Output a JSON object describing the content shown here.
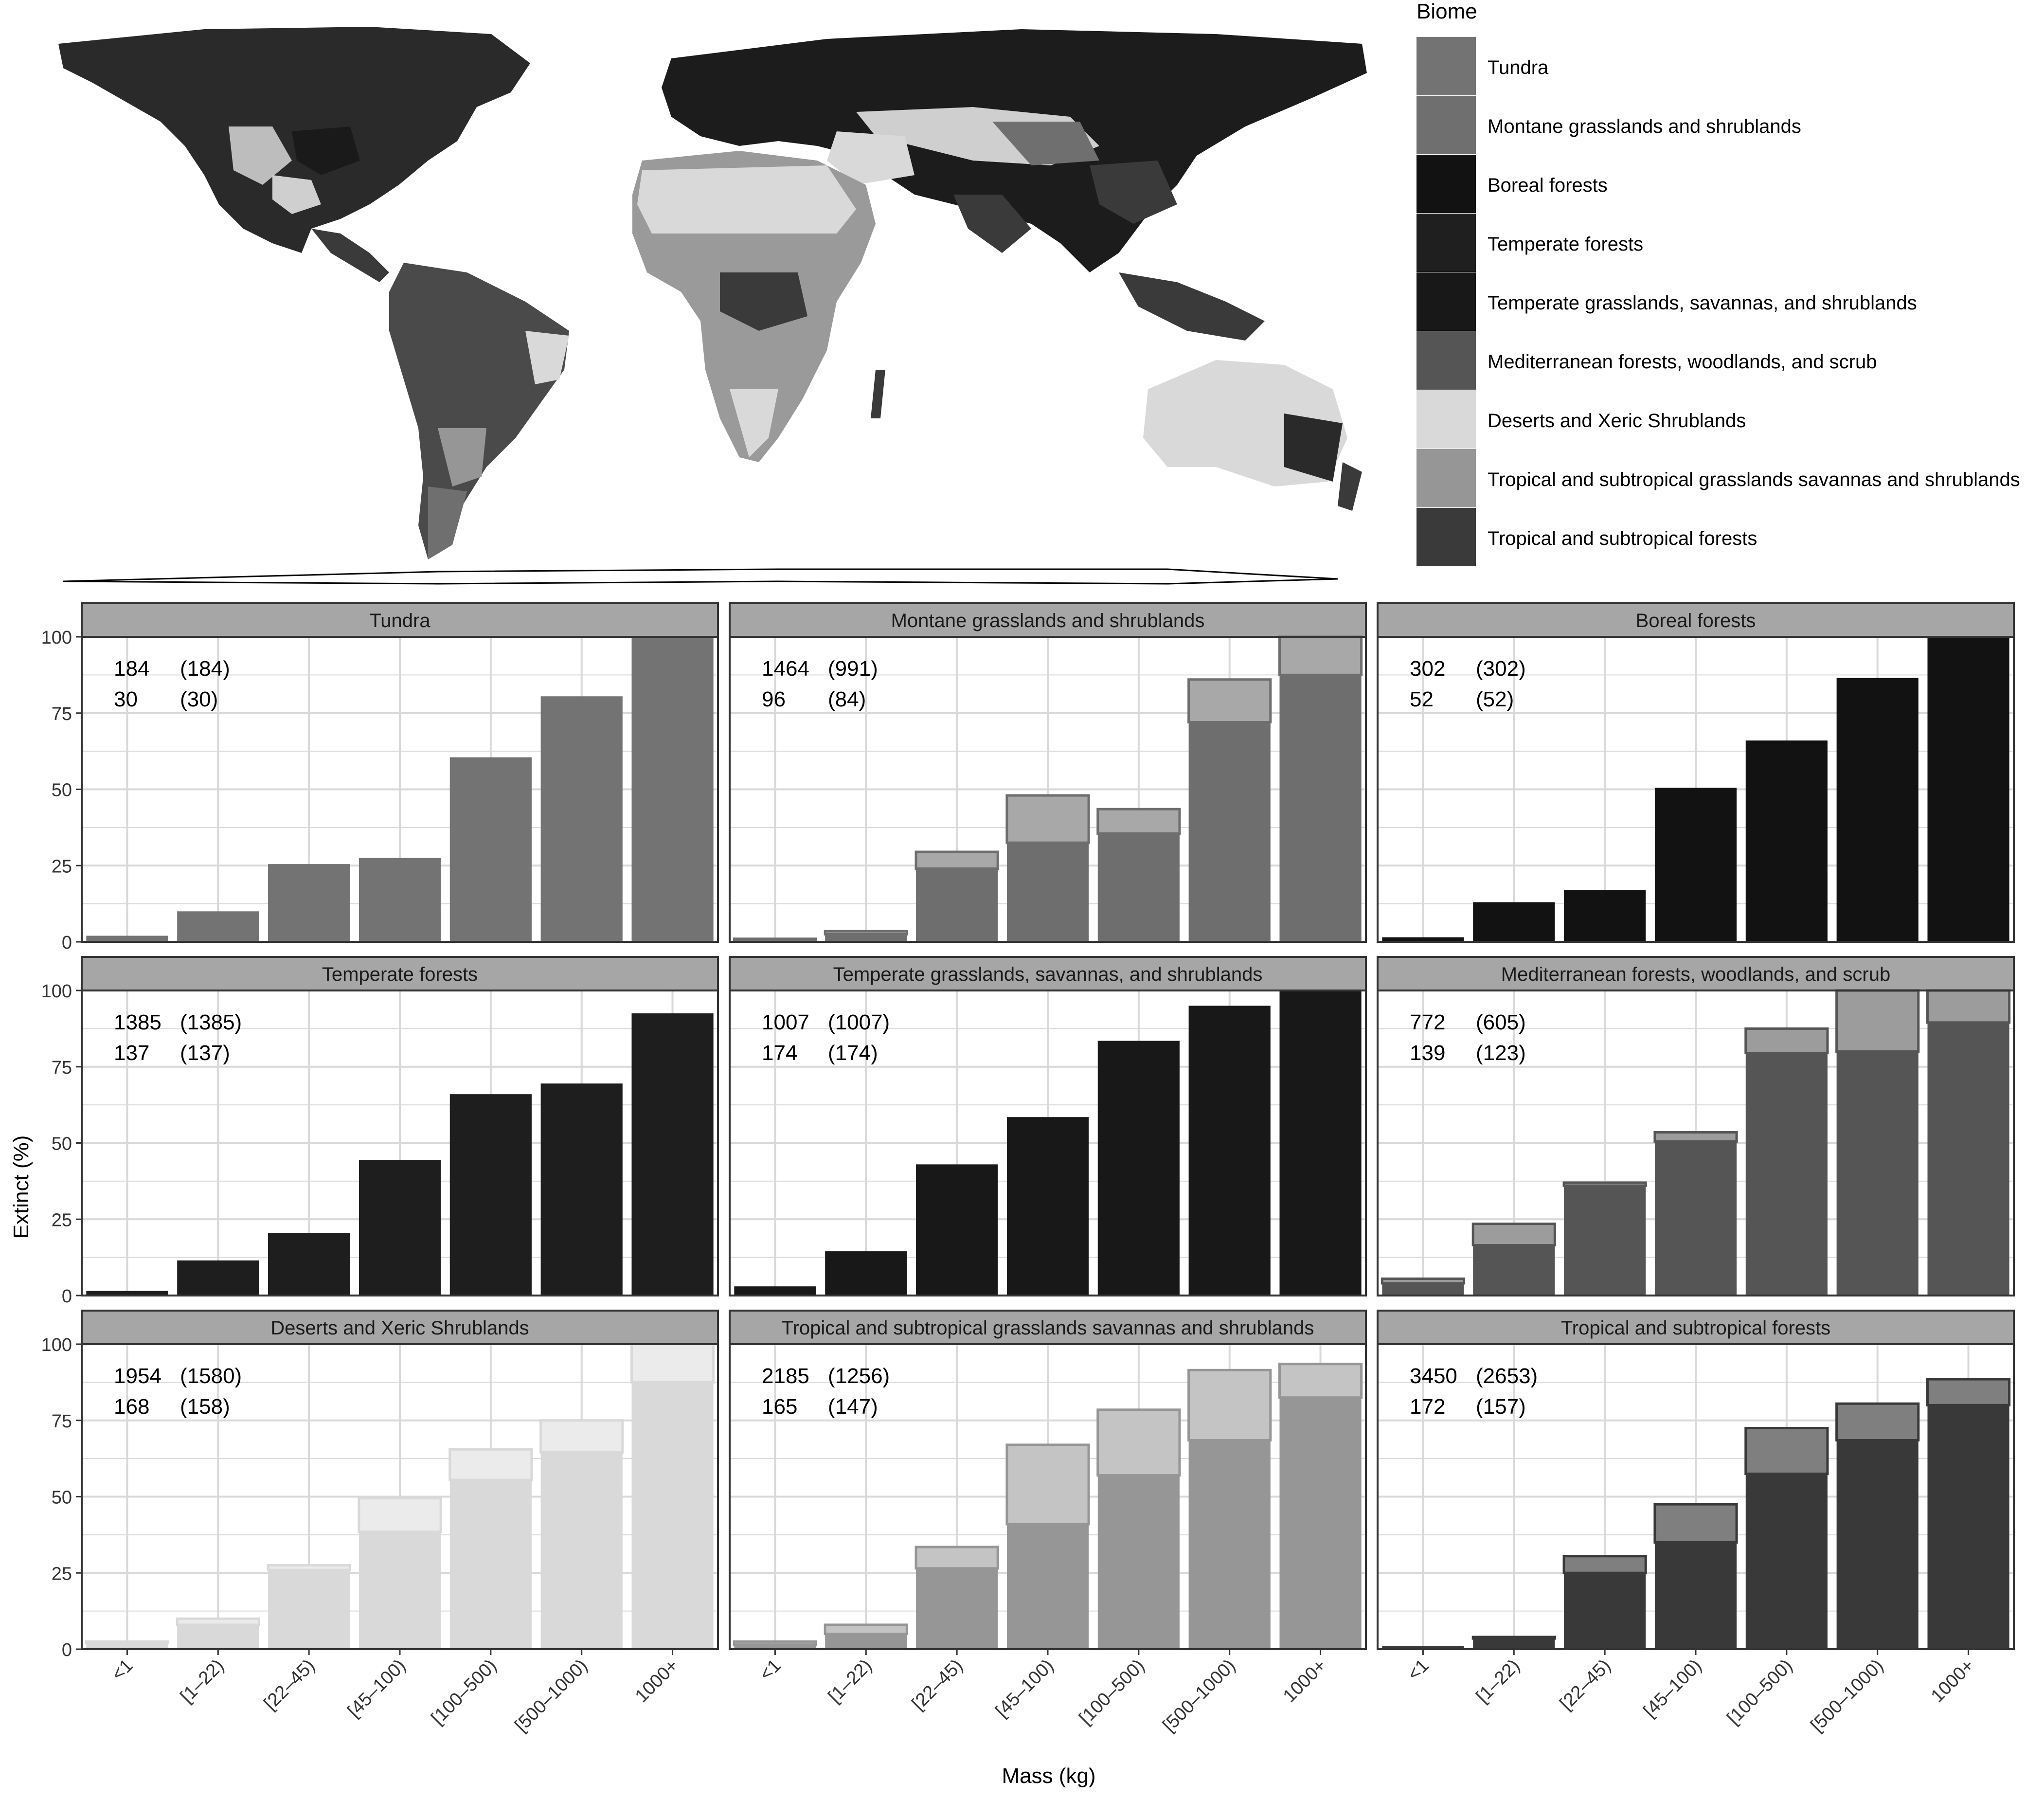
{
  "legend": {
    "title": "Biome",
    "items": [
      {
        "label": "Tundra",
        "color": "#737373"
      },
      {
        "label": "Montane grasslands and shrublands",
        "color": "#6f6f6f"
      },
      {
        "label": "Boreal forests",
        "color": "#121212"
      },
      {
        "label": "Temperate forests",
        "color": "#1f1f1f"
      },
      {
        "label": "Temperate grasslands, savannas, and shrublands",
        "color": "#181818"
      },
      {
        "label": "Mediterranean forests, woodlands, and scrub",
        "color": "#555555"
      },
      {
        "label": "Deserts and Xeric Shrublands",
        "color": "#d9d9d9"
      },
      {
        "label": "Tropical and subtropical grasslands savannas and shrublands",
        "color": "#969696"
      },
      {
        "label": "Tropical and subtropical forests",
        "color": "#3a3a3a"
      }
    ]
  },
  "map": {
    "description_icon": "world-biome-map"
  },
  "chart_data": {
    "type": "bar",
    "stacked_overlay": true,
    "categories": [
      "<1",
      "[1–22)",
      "[22–45)",
      "[45–100)",
      "[100–500)",
      "[500–1000)",
      "1000+"
    ],
    "xlabel": "Mass (kg)",
    "ylabel": "Extinct (%)",
    "ylim": [
      0,
      100
    ],
    "yticks": [
      "0",
      "25",
      "50",
      "75",
      "100"
    ],
    "grid": true,
    "panels": [
      {
        "title": "Tundra",
        "color": "#737373",
        "light": "#737373",
        "annotation": [
          [
            "184",
            "(184)"
          ],
          [
            "30",
            "(30)"
          ]
        ],
        "total": [
          2,
          10,
          25.5,
          27.5,
          60.5,
          80.5,
          100
        ],
        "base": [
          2,
          10,
          25.5,
          27.5,
          60.5,
          80.5,
          100
        ]
      },
      {
        "title": "Montane grasslands and shrublands",
        "color": "#6e6e6e",
        "light": "#a8a8a8",
        "annotation": [
          [
            "1464",
            "(991)"
          ],
          [
            "96",
            "(84)"
          ]
        ],
        "total": [
          1,
          3.5,
          29.5,
          48,
          43.5,
          86,
          100
        ],
        "base": [
          0.5,
          2.5,
          24,
          32.5,
          35.5,
          72,
          87.5
        ]
      },
      {
        "title": "Boreal forests",
        "color": "#121212",
        "light": "#121212",
        "annotation": [
          [
            "302",
            "(302)"
          ],
          [
            "52",
            "(52)"
          ]
        ],
        "total": [
          1.5,
          13,
          17,
          50.5,
          66,
          86.5,
          100
        ],
        "base": [
          1.5,
          13,
          17,
          50.5,
          66,
          86.5,
          100
        ]
      },
      {
        "title": "Temperate forests",
        "color": "#1e1e1e",
        "light": "#1e1e1e",
        "annotation": [
          [
            "1385",
            "(1385)"
          ],
          [
            "137",
            "(137)"
          ]
        ],
        "total": [
          1.5,
          11.5,
          20.5,
          44.5,
          66,
          69.5,
          92.5
        ],
        "base": [
          1.5,
          11.5,
          20.5,
          44.5,
          66,
          69.5,
          92.5
        ]
      },
      {
        "title": "Temperate grasslands, savannas, and shrublands",
        "color": "#181818",
        "light": "#181818",
        "annotation": [
          [
            "1007",
            "(1007)"
          ],
          [
            "174",
            "(174)"
          ]
        ],
        "total": [
          3,
          14.5,
          43,
          58.5,
          83.5,
          95,
          100
        ],
        "base": [
          3,
          14.5,
          43,
          58.5,
          83.5,
          95,
          100
        ]
      },
      {
        "title": "Mediterranean forests, woodlands, and scrub",
        "color": "#555555",
        "light": "#9c9c9c",
        "annotation": [
          [
            "772",
            "(605)"
          ],
          [
            "139",
            "(123)"
          ]
        ],
        "total": [
          5.5,
          23.5,
          37,
          53.5,
          87.5,
          100,
          100
        ],
        "base": [
          4,
          16.5,
          36,
          50.5,
          79.5,
          80,
          89.5
        ]
      },
      {
        "title": "Deserts and Xeric Shrublands",
        "color": "#d9d9d9",
        "light": "#ebebeb",
        "annotation": [
          [
            "1954",
            "(1580)"
          ],
          [
            "168",
            "(158)"
          ]
        ],
        "total": [
          2.5,
          10,
          27.5,
          49.5,
          65.5,
          75,
          100
        ],
        "base": [
          2,
          8,
          26,
          38.5,
          55.5,
          64.5,
          87.5
        ]
      },
      {
        "title": "Tropical and subtropical grasslands savannas and shrublands",
        "color": "#969696",
        "light": "#c4c4c4",
        "annotation": [
          [
            "2185",
            "(1256)"
          ],
          [
            "165",
            "(147)"
          ]
        ],
        "total": [
          2.5,
          8,
          33.5,
          67,
          78.5,
          91.5,
          93.5
        ],
        "base": [
          1.5,
          5,
          26.5,
          41,
          57,
          68.5,
          82.5
        ]
      },
      {
        "title": "Tropical and subtropical forests",
        "color": "#393939",
        "light": "#7f7f7f",
        "annotation": [
          [
            "3450",
            "(2653)"
          ],
          [
            "172",
            "(157)"
          ]
        ],
        "total": [
          1,
          4,
          30.5,
          47.5,
          72.5,
          80.5,
          88.5
        ],
        "base": [
          1,
          3.5,
          25,
          35,
          57.5,
          68.5,
          80
        ]
      }
    ]
  }
}
